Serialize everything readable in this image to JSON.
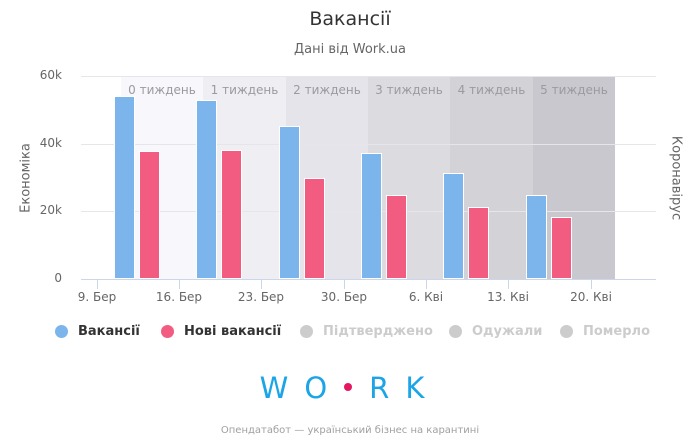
{
  "header": {
    "title": "Вакансії",
    "subtitle": "Дані від Work.ua"
  },
  "axes": {
    "left_title": "Економіка",
    "right_title": "Коронавірус",
    "y_ticks": [
      "0",
      "20k",
      "40k",
      "60k"
    ],
    "x_ticks": [
      "9. Бер",
      "16. Бер",
      "23. Бер",
      "30. Бер",
      "6. Кві",
      "13. Кві",
      "20. Кві"
    ]
  },
  "bands": [
    {
      "label": "0 тиждень",
      "color": "#f8f7fc"
    },
    {
      "label": "1 тиждень",
      "color": "#efeef3"
    },
    {
      "label": "2 тиждень",
      "color": "#e5e4ea"
    },
    {
      "label": "3 тиждень",
      "color": "#dcdbe0"
    },
    {
      "label": "4 тиждень",
      "color": "#d3d2d7"
    },
    {
      "label": "5 тиждень",
      "color": "#c9c8ce"
    }
  ],
  "legend": [
    {
      "label": "Вакансії",
      "color": "#7cb5ec",
      "active": true
    },
    {
      "label": "Нові вакансії",
      "color": "#f15c80",
      "active": true
    },
    {
      "label": "Підтверджено",
      "color": "#cccccc",
      "active": false
    },
    {
      "label": "Одужали",
      "color": "#cccccc",
      "active": false
    },
    {
      "label": "Померло",
      "color": "#cccccc",
      "active": false
    }
  ],
  "logo": {
    "left": "WO",
    "right": "RK"
  },
  "footer": "Опендатабот — український бізнес на карантині",
  "chart_data": {
    "type": "bar",
    "title": "Вакансії",
    "subtitle": "Дані від Work.ua",
    "xlabel": "",
    "ylabel": "Економіка",
    "ylabel_right": "Коронавірус",
    "ylim": [
      0,
      60000
    ],
    "grid": true,
    "legend_position": "bottom",
    "categories": [
      "9. Бер",
      "16. Бер",
      "23. Бер",
      "30. Бер",
      "6. Кві",
      "13. Кві",
      "20. Кві"
    ],
    "series": [
      {
        "name": "Вакансії",
        "color": "#7cb5ec",
        "values": [
          null,
          54000,
          53000,
          45200,
          37300,
          31400,
          24900
        ]
      },
      {
        "name": "Нові вакансії",
        "color": "#f15c80",
        "values": [
          null,
          37900,
          38200,
          29900,
          24900,
          21300,
          18300
        ]
      },
      {
        "name": "Підтверджено",
        "hidden": true,
        "values": []
      },
      {
        "name": "Одужали",
        "hidden": true,
        "values": []
      },
      {
        "name": "Померло",
        "hidden": true,
        "values": []
      }
    ],
    "plot_bands": [
      "0 тиждень",
      "1 тиждень",
      "2 тиждень",
      "3 тиждень",
      "4 тиждень",
      "5 тиждень"
    ]
  }
}
